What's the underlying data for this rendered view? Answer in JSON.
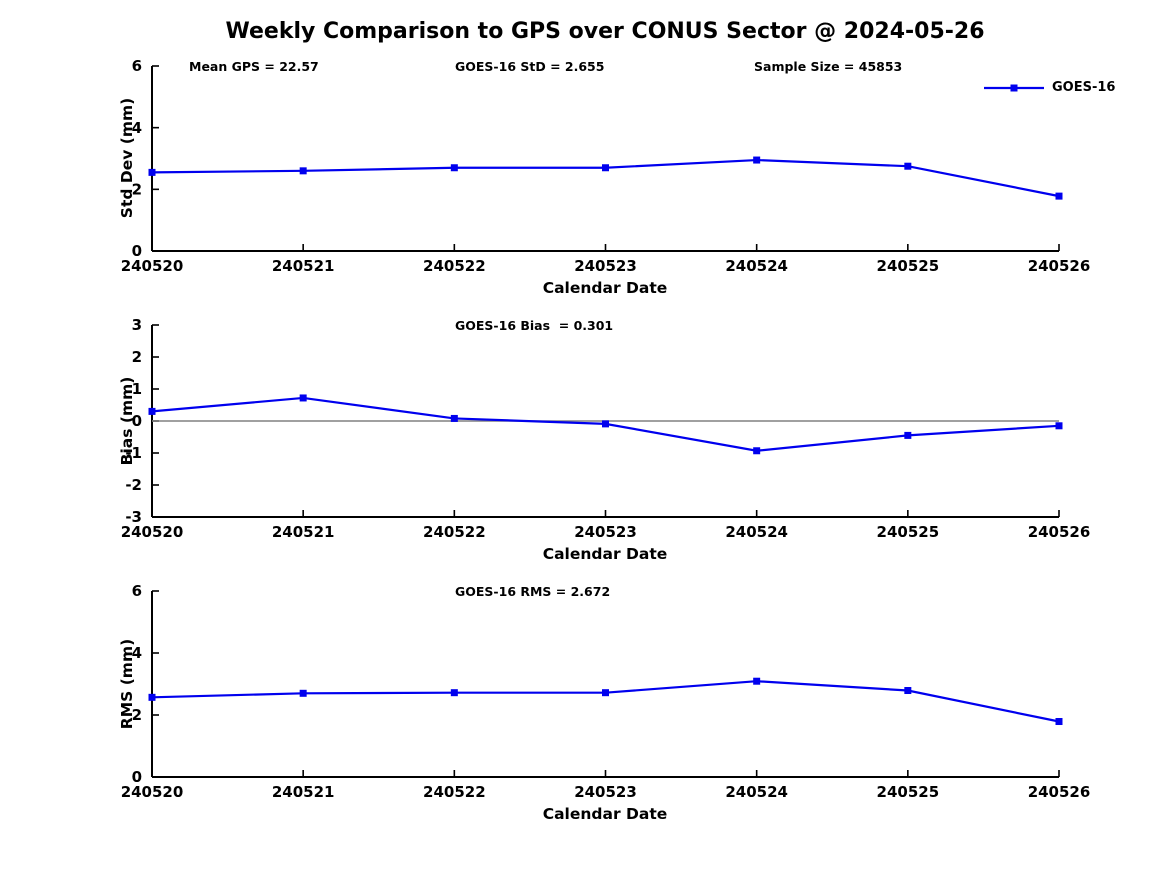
{
  "title": "Weekly Comparison to GPS over CONUS Sector @ 2024-05-26",
  "legend": {
    "label": "GOES-16"
  },
  "colors": {
    "series": "#0000EE",
    "zero_line": "#808080",
    "axis": "#000000"
  },
  "subplots": [
    {
      "name": "Std Dev",
      "ylabel": "Std Dev (mm)",
      "xlabel": "Calendar Date",
      "annotations": [
        "Mean GPS = 22.57",
        "GOES-16 StD = 2.655",
        "Sample Size = 45853"
      ]
    },
    {
      "name": "Bias",
      "ylabel": "Bias (mm)",
      "xlabel": "Calendar Date",
      "annotations": [
        "GOES-16 Bias  = 0.301"
      ]
    },
    {
      "name": "RMS",
      "ylabel": "RMS (mm)",
      "xlabel": "Calendar Date",
      "annotations": [
        "GOES-16 RMS = 2.672"
      ]
    }
  ],
  "chart_data": [
    {
      "type": "line",
      "title": "Weekly Comparison to GPS over CONUS Sector @ 2024-05-26",
      "categories": [
        "240520",
        "240521",
        "240522",
        "240523",
        "240524",
        "240525",
        "240526"
      ],
      "series": [
        {
          "name": "GOES-16",
          "values": [
            2.55,
            2.6,
            2.7,
            2.7,
            2.95,
            2.75,
            1.78
          ]
        }
      ],
      "xlabel": "Calendar Date",
      "ylabel": "Std Dev (mm)",
      "ylim": [
        0,
        6
      ],
      "yticks": [
        0,
        2,
        4,
        6
      ],
      "grid": false,
      "marker": "square",
      "line_color": "#0000EE",
      "legend_position": "northeast-outside",
      "annotations": [
        "Mean GPS = 22.57",
        "GOES-16 StD = 2.655",
        "Sample Size = 45853"
      ]
    },
    {
      "type": "line",
      "title": "",
      "categories": [
        "240520",
        "240521",
        "240522",
        "240523",
        "240524",
        "240525",
        "240526"
      ],
      "series": [
        {
          "name": "GOES-16",
          "values": [
            0.3,
            0.72,
            0.08,
            -0.09,
            -0.93,
            -0.45,
            -0.15
          ]
        }
      ],
      "xlabel": "Calendar Date",
      "ylabel": "Bias (mm)",
      "ylim": [
        -3,
        3
      ],
      "yticks": [
        -3,
        -2,
        -1,
        0,
        1,
        2,
        3
      ],
      "grid": false,
      "marker": "square",
      "line_color": "#0000EE",
      "zero_line": true,
      "zero_line_color": "#808080",
      "annotations": [
        "GOES-16 Bias  = 0.301"
      ]
    },
    {
      "type": "line",
      "title": "",
      "categories": [
        "240520",
        "240521",
        "240522",
        "240523",
        "240524",
        "240525",
        "240526"
      ],
      "series": [
        {
          "name": "GOES-16",
          "values": [
            2.57,
            2.7,
            2.72,
            2.72,
            3.09,
            2.79,
            1.79
          ]
        }
      ],
      "xlabel": "Calendar Date",
      "ylabel": "RMS (mm)",
      "ylim": [
        0,
        6
      ],
      "yticks": [
        0,
        2,
        4,
        6
      ],
      "grid": false,
      "marker": "square",
      "line_color": "#0000EE",
      "annotations": [
        "GOES-16 RMS = 2.672"
      ]
    }
  ]
}
